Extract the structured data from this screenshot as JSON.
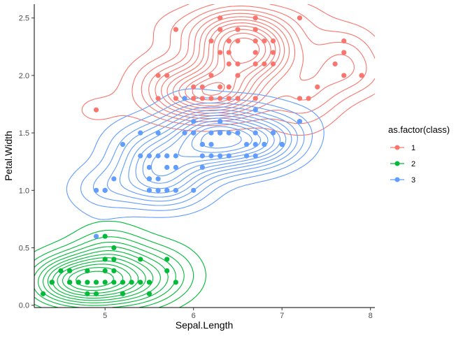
{
  "chart_data": {
    "type": "scatter",
    "title": "",
    "xlabel": "Sepal.Length",
    "ylabel": "Petal.Width",
    "xlim": [
      4.2,
      8.05
    ],
    "ylim": [
      -0.02,
      2.62
    ],
    "x_ticks": [
      5,
      6,
      7,
      8
    ],
    "y_ticks": [
      0.0,
      0.5,
      1.0,
      1.5,
      2.0,
      2.5
    ],
    "x_tick_labels": [
      "5",
      "6",
      "7",
      "8"
    ],
    "y_tick_labels": [
      "0.0",
      "0.5",
      "1.0",
      "1.5",
      "2.0",
      "2.5"
    ],
    "grid": false,
    "overlay": "2d density contour lines per series",
    "legend": {
      "title": "as.factor(class)",
      "placement": "right",
      "entries": [
        "1",
        "2",
        "3"
      ]
    },
    "series": [
      {
        "name": "1",
        "color": "#F8766D",
        "points": [
          [
            4.9,
            1.7
          ],
          [
            5.6,
            2.0
          ],
          [
            5.7,
            2.0
          ],
          [
            5.8,
            2.4
          ],
          [
            5.6,
            1.8
          ],
          [
            5.8,
            1.8
          ],
          [
            5.9,
            1.8
          ],
          [
            6.0,
            1.8
          ],
          [
            6.1,
            1.8
          ],
          [
            6.2,
            1.8
          ],
          [
            6.3,
            1.8
          ],
          [
            6.4,
            1.8
          ],
          [
            6.5,
            1.8
          ],
          [
            6.7,
            1.8
          ],
          [
            7.2,
            1.8
          ],
          [
            7.3,
            1.8
          ],
          [
            6.3,
            1.9
          ],
          [
            6.4,
            1.9
          ],
          [
            6.5,
            2.0
          ],
          [
            6.1,
            1.9
          ],
          [
            6.0,
            1.9
          ],
          [
            6.2,
            2.0
          ],
          [
            6.4,
            2.1
          ],
          [
            6.5,
            2.1
          ],
          [
            6.7,
            2.1
          ],
          [
            6.8,
            2.1
          ],
          [
            6.9,
            2.1
          ],
          [
            6.3,
            2.2
          ],
          [
            6.4,
            2.2
          ],
          [
            6.7,
            2.2
          ],
          [
            6.4,
            2.3
          ],
          [
            6.5,
            2.3
          ],
          [
            6.7,
            2.3
          ],
          [
            6.9,
            2.3
          ],
          [
            7.7,
            2.3
          ],
          [
            6.3,
            2.4
          ],
          [
            6.5,
            2.4
          ],
          [
            6.7,
            2.4
          ],
          [
            6.3,
            2.5
          ],
          [
            6.7,
            2.5
          ],
          [
            7.2,
            2.5
          ],
          [
            7.7,
            2.2
          ],
          [
            7.6,
            2.1
          ],
          [
            7.7,
            2.0
          ],
          [
            7.9,
            2.0
          ],
          [
            7.4,
            1.9
          ],
          [
            6.8,
            2.3
          ],
          [
            6.2,
            2.3
          ],
          [
            6.9,
            2.2
          ],
          [
            7.2,
            1.6
          ]
        ]
      },
      {
        "name": "2",
        "color": "#00BA38",
        "points": [
          [
            4.3,
            0.1
          ],
          [
            4.4,
            0.2
          ],
          [
            4.5,
            0.3
          ],
          [
            4.6,
            0.2
          ],
          [
            4.6,
            0.3
          ],
          [
            4.7,
            0.2
          ],
          [
            4.8,
            0.1
          ],
          [
            4.8,
            0.2
          ],
          [
            4.8,
            0.3
          ],
          [
            4.9,
            0.1
          ],
          [
            4.9,
            0.2
          ],
          [
            5.0,
            0.2
          ],
          [
            5.0,
            0.3
          ],
          [
            5.0,
            0.4
          ],
          [
            5.0,
            0.6
          ],
          [
            5.1,
            0.2
          ],
          [
            5.1,
            0.3
          ],
          [
            5.1,
            0.4
          ],
          [
            5.1,
            0.5
          ],
          [
            5.2,
            0.1
          ],
          [
            5.2,
            0.2
          ],
          [
            5.3,
            0.2
          ],
          [
            5.4,
            0.2
          ],
          [
            5.4,
            0.4
          ],
          [
            5.5,
            0.2
          ],
          [
            5.5,
            0.1
          ],
          [
            5.7,
            0.3
          ],
          [
            5.7,
            0.4
          ],
          [
            5.8,
            0.2
          ],
          [
            4.6,
            0.2
          ],
          [
            4.4,
            0.2
          ],
          [
            4.7,
            0.2
          ]
        ]
      },
      {
        "name": "3",
        "color": "#619CFF",
        "points": [
          [
            4.9,
            1.0
          ],
          [
            5.0,
            1.0
          ],
          [
            5.1,
            1.1
          ],
          [
            5.2,
            1.4
          ],
          [
            5.5,
            1.0
          ],
          [
            5.5,
            1.1
          ],
          [
            5.5,
            1.3
          ],
          [
            5.6,
            1.0
          ],
          [
            5.6,
            1.1
          ],
          [
            5.6,
            1.3
          ],
          [
            5.7,
            1.0
          ],
          [
            5.7,
            1.2
          ],
          [
            5.7,
            1.3
          ],
          [
            5.8,
            1.0
          ],
          [
            5.8,
            1.2
          ],
          [
            5.9,
            1.5
          ],
          [
            6.0,
            1.0
          ],
          [
            6.0,
            1.5
          ],
          [
            6.0,
            1.6
          ],
          [
            6.1,
            1.2
          ],
          [
            6.1,
            1.3
          ],
          [
            6.1,
            1.4
          ],
          [
            6.2,
            1.5
          ],
          [
            6.3,
            1.3
          ],
          [
            6.3,
            1.5
          ],
          [
            6.3,
            1.6
          ],
          [
            6.4,
            1.3
          ],
          [
            6.4,
            1.5
          ],
          [
            6.5,
            1.5
          ],
          [
            6.6,
            1.3
          ],
          [
            6.6,
            1.4
          ],
          [
            6.7,
            1.4
          ],
          [
            6.7,
            1.5
          ],
          [
            6.8,
            1.4
          ],
          [
            6.9,
            1.5
          ],
          [
            7.0,
            1.4
          ],
          [
            6.3,
            1.5
          ],
          [
            5.9,
            1.8
          ],
          [
            5.8,
            1.3
          ],
          [
            5.5,
            1.2
          ],
          [
            5.6,
            1.5
          ],
          [
            5.0,
            1.0
          ],
          [
            5.4,
            1.5
          ],
          [
            6.7,
            1.3
          ],
          [
            6.2,
            1.3
          ],
          [
            6.1,
            1.4
          ],
          [
            5.7,
            1.3
          ],
          [
            5.4,
            1.3
          ],
          [
            6.3,
            1.6
          ],
          [
            6.9,
            1.5
          ],
          [
            7.2,
            1.6
          ],
          [
            6.0,
            1.5
          ],
          [
            6.3,
            1.5
          ],
          [
            6.8,
            1.4
          ],
          [
            7.0,
            1.4
          ],
          [
            6.2,
            1.4
          ],
          [
            6.5,
            1.5
          ],
          [
            4.9,
            0.6
          ],
          [
            5.5,
            1.1
          ],
          [
            6.7,
            1.7
          ]
        ]
      }
    ]
  }
}
